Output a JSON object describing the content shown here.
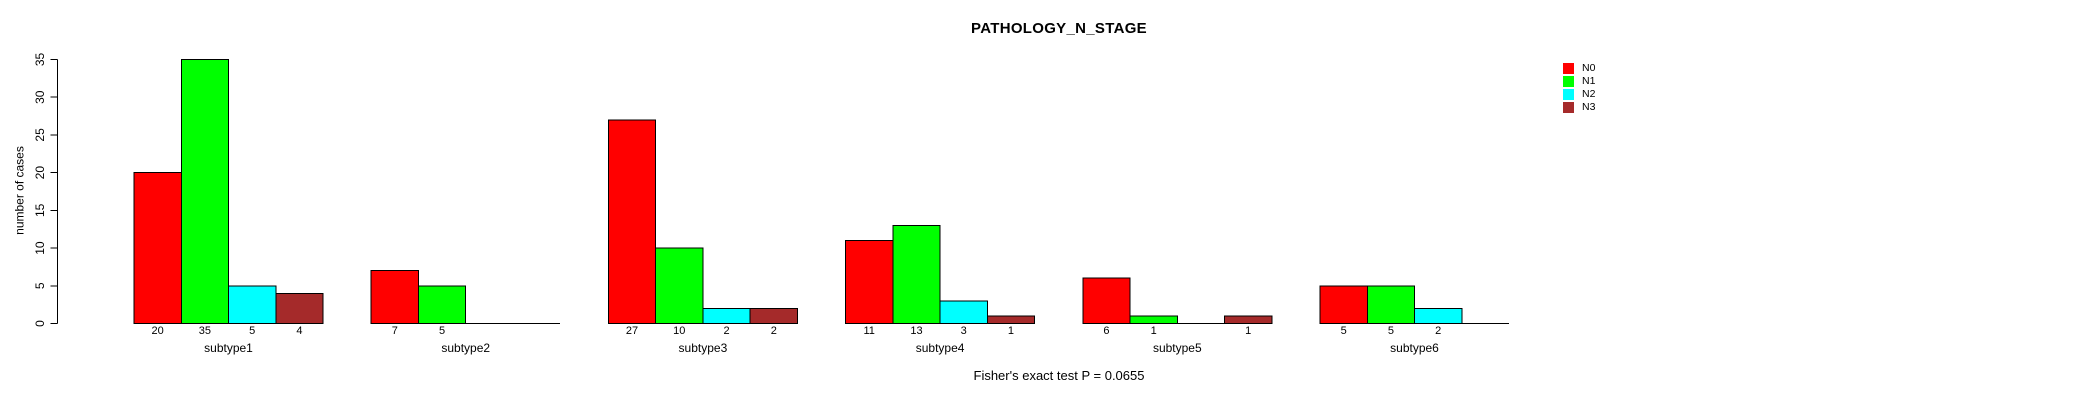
{
  "chart_data": {
    "type": "bar",
    "title": "PATHOLOGY_N_STAGE",
    "ylabel": "number of cases",
    "xlabel": "",
    "annotation": "Fisher's exact test P = 0.0655",
    "categories": [
      "subtype1",
      "subtype2",
      "subtype3",
      "subtype4",
      "subtype5",
      "subtype6"
    ],
    "series": [
      {
        "name": "N0",
        "color": "#ff0000",
        "values": [
          20,
          7,
          27,
          11,
          6,
          5
        ]
      },
      {
        "name": "N1",
        "color": "#00ff00",
        "values": [
          35,
          5,
          10,
          13,
          1,
          5
        ]
      },
      {
        "name": "N2",
        "color": "#00ffff",
        "values": [
          5,
          0,
          2,
          3,
          0,
          2
        ]
      },
      {
        "name": "N3",
        "color": "#a52a2a",
        "values": [
          4,
          0,
          2,
          1,
          1,
          0
        ]
      }
    ],
    "ylim": [
      0,
      35
    ],
    "yticks": [
      0,
      5,
      10,
      15,
      20,
      25,
      30,
      35
    ],
    "show_bar_value_labels": true,
    "hide_zero_value_labels": true,
    "legend_position": "top-right",
    "grid": false,
    "background_color": "#ffffff",
    "axis_color": "#000000",
    "text_color": "#000000",
    "bar_border_color": "#000000"
  }
}
